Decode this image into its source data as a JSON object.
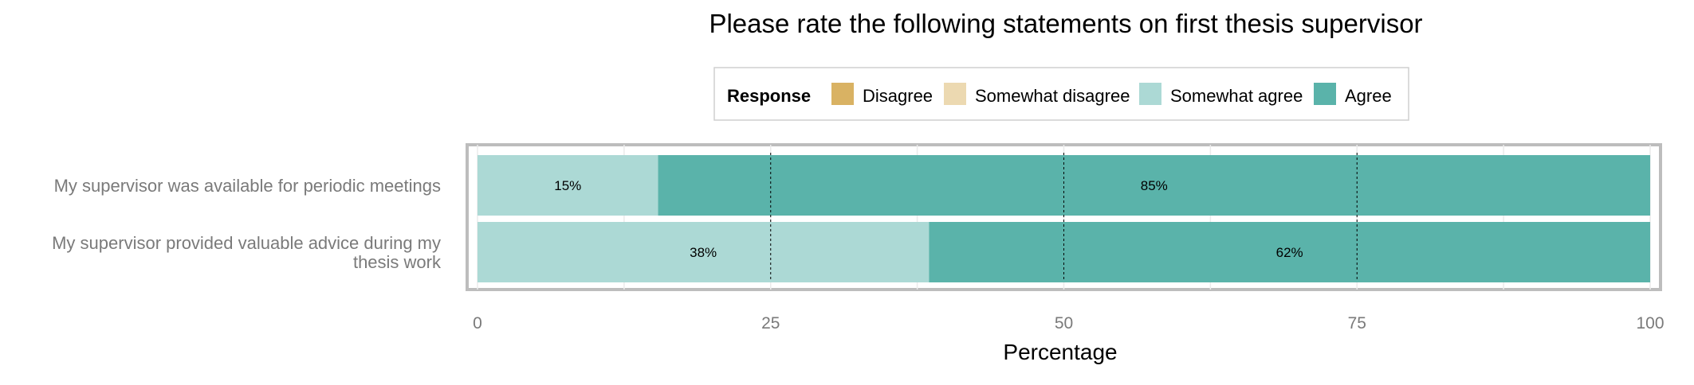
{
  "chart_data": {
    "type": "bar",
    "orientation": "horizontal",
    "stacked": true,
    "title": "Please rate the following statements on first thesis supervisor",
    "xlabel": "Percentage",
    "ylabel": "",
    "xlim": [
      0,
      100
    ],
    "x_ticks": [
      0,
      25,
      50,
      75,
      100
    ],
    "grid": true,
    "legend": {
      "title": "Response",
      "placement": "top",
      "entries": [
        "Disagree",
        "Somewhat disagree",
        "Somewhat agree",
        "Agree"
      ]
    },
    "colors": {
      "Disagree": "#d9b263",
      "Somewhat disagree": "#ecd9b1",
      "Somewhat agree": "#acd9d5",
      "Agree": "#5ab3aa"
    },
    "categories": [
      [
        "My supervisor was available for periodic meetings"
      ],
      [
        "My supervisor provided valuable advice during my",
        "thesis work"
      ]
    ],
    "series": [
      {
        "name": "Disagree",
        "values": [
          0,
          0
        ]
      },
      {
        "name": "Somewhat disagree",
        "values": [
          0,
          0
        ]
      },
      {
        "name": "Somewhat agree",
        "values": [
          15.4,
          38.5
        ]
      },
      {
        "name": "Agree",
        "values": [
          84.6,
          61.5
        ]
      }
    ],
    "data_labels": [
      [
        "",
        "",
        "15%",
        "85%"
      ],
      [
        "",
        "",
        "38%",
        "62%"
      ]
    ]
  }
}
